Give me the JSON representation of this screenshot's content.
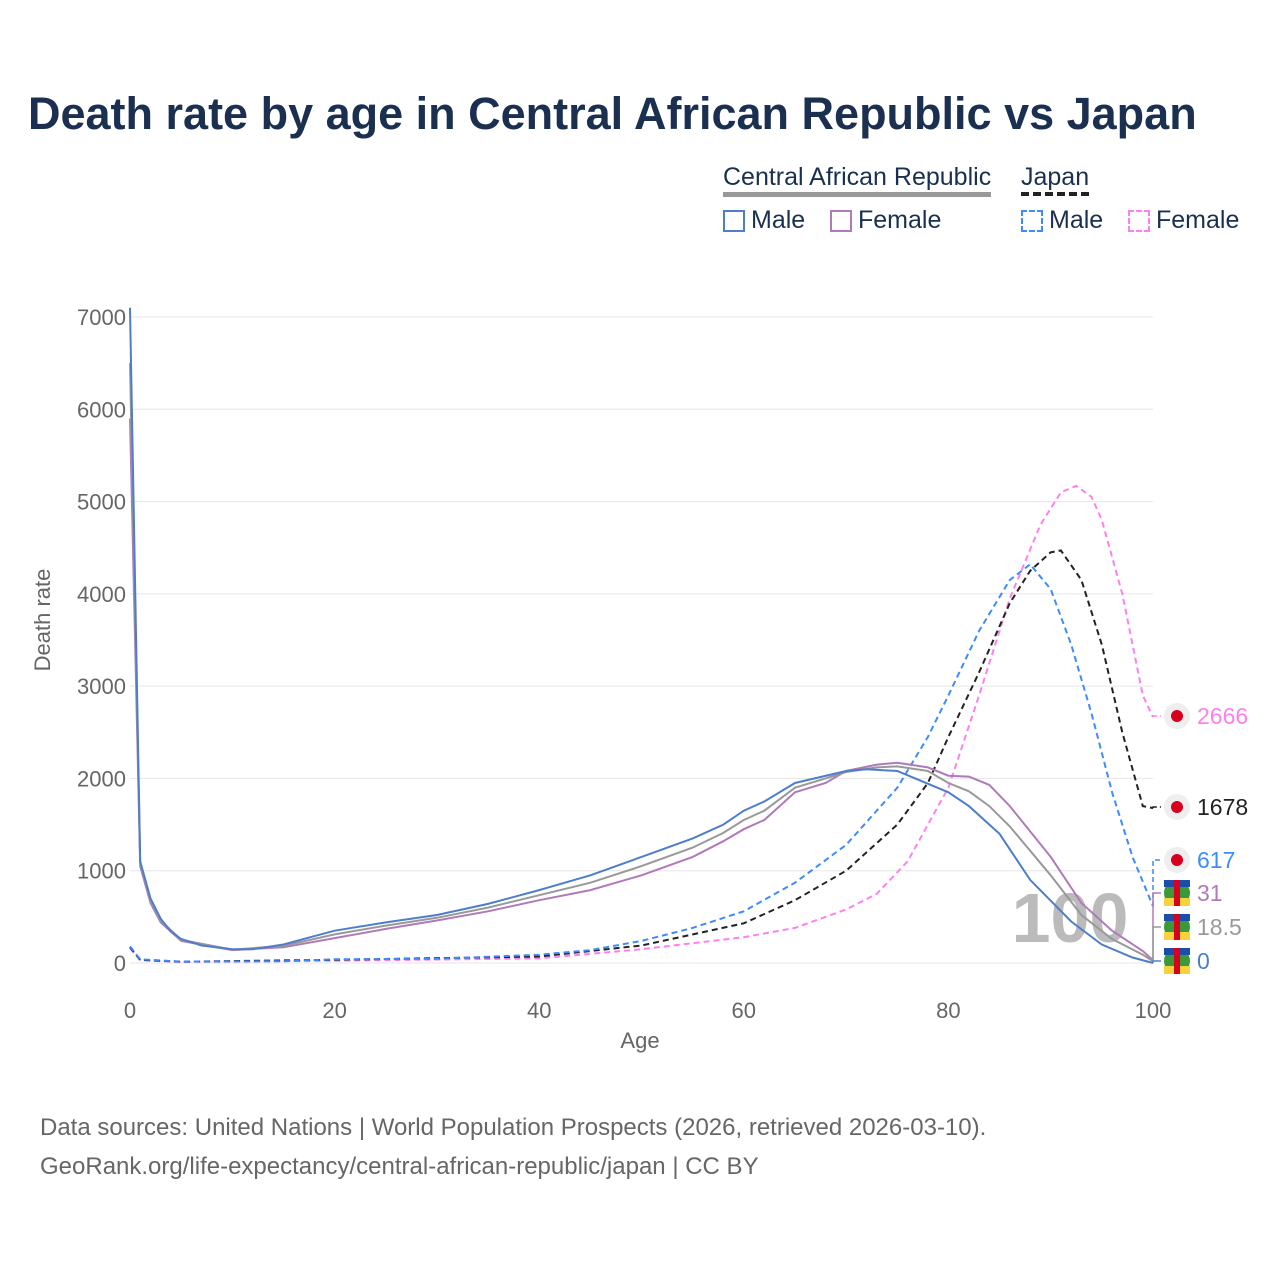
{
  "title": "Death rate by age in Central African Republic vs Japan",
  "legend": {
    "group1": "Central African Republic",
    "group2": "Japan",
    "male": "Male",
    "female": "Female"
  },
  "source_line1": "Data sources: United Nations | World Population Prospects (2026, retrieved 2026-03-10).",
  "source_line2": "GeoRank.org/life-expectancy/central-african-republic/japan | CC BY",
  "chart_data": {
    "type": "line",
    "title": "Death rate by age in Central African Republic vs Japan",
    "xlabel": "Age",
    "ylabel": "Death rate",
    "xlim": [
      0,
      100
    ],
    "ylim": [
      0,
      7000
    ],
    "xticks": [
      0,
      20,
      40,
      60,
      80,
      100
    ],
    "yticks": [
      0,
      1000,
      2000,
      3000,
      4000,
      5000,
      6000,
      7000
    ],
    "hover_age_label": "100",
    "series": [
      {
        "name": "Japan Female",
        "color": "#ff80ec",
        "dash": true,
        "end_label": "2666",
        "flag": "japan",
        "points": [
          [
            0,
            160
          ],
          [
            1,
            30
          ],
          [
            5,
            12
          ],
          [
            20,
            25
          ],
          [
            40,
            50
          ],
          [
            50,
            150
          ],
          [
            60,
            280
          ],
          [
            65,
            380
          ],
          [
            70,
            580
          ],
          [
            73,
            750
          ],
          [
            76,
            1100
          ],
          [
            80,
            1900
          ],
          [
            83,
            2900
          ],
          [
            86,
            3950
          ],
          [
            89,
            4750
          ],
          [
            91,
            5100
          ],
          [
            92.5,
            5170
          ],
          [
            94,
            5050
          ],
          [
            95,
            4800
          ],
          [
            97,
            4000
          ],
          [
            99,
            2900
          ],
          [
            100,
            2666
          ]
        ]
      },
      {
        "name": "Japan Total",
        "color": "#222222",
        "dash": true,
        "end_label": "1678",
        "flag": "japan",
        "points": [
          [
            0,
            170
          ],
          [
            1,
            35
          ],
          [
            5,
            14
          ],
          [
            20,
            35
          ],
          [
            40,
            70
          ],
          [
            50,
            190
          ],
          [
            60,
            430
          ],
          [
            65,
            680
          ],
          [
            70,
            1000
          ],
          [
            75,
            1500
          ],
          [
            78,
            1950
          ],
          [
            80,
            2450
          ],
          [
            83,
            3150
          ],
          [
            86,
            3900
          ],
          [
            88,
            4250
          ],
          [
            90,
            4450
          ],
          [
            91,
            4470
          ],
          [
            93,
            4150
          ],
          [
            95,
            3450
          ],
          [
            97,
            2500
          ],
          [
            99,
            1700
          ],
          [
            100,
            1678
          ]
        ]
      },
      {
        "name": "Japan Male",
        "color": "#3d8bff",
        "dash": true,
        "end_label": "617",
        "flag": "japan",
        "points": [
          [
            0,
            180
          ],
          [
            1,
            40
          ],
          [
            5,
            15
          ],
          [
            15,
            20
          ],
          [
            20,
            40
          ],
          [
            30,
            45
          ],
          [
            40,
            90
          ],
          [
            45,
            140
          ],
          [
            50,
            240
          ],
          [
            55,
            380
          ],
          [
            60,
            560
          ],
          [
            65,
            870
          ],
          [
            70,
            1280
          ],
          [
            75,
            1900
          ],
          [
            78,
            2450
          ],
          [
            80,
            2900
          ],
          [
            83,
            3600
          ],
          [
            86,
            4150
          ],
          [
            88,
            4320
          ],
          [
            90,
            4050
          ],
          [
            92,
            3450
          ],
          [
            94,
            2700
          ],
          [
            96,
            1850
          ],
          [
            98,
            1150
          ],
          [
            100,
            617
          ]
        ]
      },
      {
        "name": "Central African Republic Female",
        "color": "#b07aba",
        "dash": false,
        "end_label": "31",
        "flag": "car",
        "points": [
          [
            0,
            5900
          ],
          [
            1,
            1050
          ],
          [
            2,
            650
          ],
          [
            3,
            440
          ],
          [
            5,
            240
          ],
          [
            10,
            140
          ],
          [
            15,
            170
          ],
          [
            20,
            270
          ],
          [
            25,
            370
          ],
          [
            30,
            460
          ],
          [
            35,
            560
          ],
          [
            40,
            680
          ],
          [
            45,
            790
          ],
          [
            50,
            950
          ],
          [
            55,
            1150
          ],
          [
            58,
            1320
          ],
          [
            60,
            1450
          ],
          [
            62,
            1550
          ],
          [
            65,
            1850
          ],
          [
            68,
            1950
          ],
          [
            70,
            2080
          ],
          [
            73,
            2150
          ],
          [
            75,
            2170
          ],
          [
            78,
            2120
          ],
          [
            80,
            2030
          ],
          [
            82,
            2020
          ],
          [
            84,
            1930
          ],
          [
            86,
            1700
          ],
          [
            90,
            1150
          ],
          [
            93,
            650
          ],
          [
            96,
            350
          ],
          [
            99,
            130
          ],
          [
            100,
            31
          ]
        ]
      },
      {
        "name": "Central African Republic Total",
        "color": "#999999",
        "dash": false,
        "end_label": "18.5",
        "flag": "car",
        "points": [
          [
            0,
            6500
          ],
          [
            1,
            1080
          ],
          [
            2,
            680
          ],
          [
            3,
            460
          ],
          [
            5,
            250
          ],
          [
            10,
            145
          ],
          [
            15,
            185
          ],
          [
            20,
            310
          ],
          [
            25,
            405
          ],
          [
            30,
            490
          ],
          [
            35,
            600
          ],
          [
            40,
            735
          ],
          [
            45,
            870
          ],
          [
            50,
            1050
          ],
          [
            55,
            1250
          ],
          [
            58,
            1410
          ],
          [
            60,
            1550
          ],
          [
            62,
            1650
          ],
          [
            65,
            1900
          ],
          [
            68,
            2000
          ],
          [
            70,
            2070
          ],
          [
            73,
            2120
          ],
          [
            75,
            2130
          ],
          [
            78,
            2080
          ],
          [
            80,
            1950
          ],
          [
            82,
            1860
          ],
          [
            84,
            1700
          ],
          [
            86,
            1480
          ],
          [
            90,
            950
          ],
          [
            93,
            520
          ],
          [
            96,
            260
          ],
          [
            99,
            90
          ],
          [
            100,
            18.5
          ]
        ]
      },
      {
        "name": "Central African Republic Male",
        "color": "#4e7ecb",
        "dash": false,
        "end_label": "0",
        "flag": "car",
        "points": [
          [
            0,
            7100
          ],
          [
            1,
            1100
          ],
          [
            2,
            700
          ],
          [
            3,
            480
          ],
          [
            4,
            340
          ],
          [
            5,
            260
          ],
          [
            7,
            190
          ],
          [
            10,
            150
          ],
          [
            12,
            150
          ],
          [
            15,
            200
          ],
          [
            18,
            290
          ],
          [
            20,
            350
          ],
          [
            25,
            440
          ],
          [
            30,
            520
          ],
          [
            35,
            640
          ],
          [
            40,
            790
          ],
          [
            45,
            950
          ],
          [
            50,
            1150
          ],
          [
            55,
            1350
          ],
          [
            58,
            1500
          ],
          [
            60,
            1650
          ],
          [
            62,
            1750
          ],
          [
            65,
            1950
          ],
          [
            70,
            2080
          ],
          [
            72,
            2100
          ],
          [
            75,
            2080
          ],
          [
            80,
            1850
          ],
          [
            82,
            1700
          ],
          [
            85,
            1400
          ],
          [
            88,
            900
          ],
          [
            92,
            450
          ],
          [
            95,
            200
          ],
          [
            98,
            60
          ],
          [
            100,
            0
          ]
        ]
      }
    ],
    "end_label_colors": [
      "#ff80ec",
      "#222222",
      "#3d8bff",
      "#b07aba",
      "#999999",
      "#4e7ecb"
    ]
  }
}
